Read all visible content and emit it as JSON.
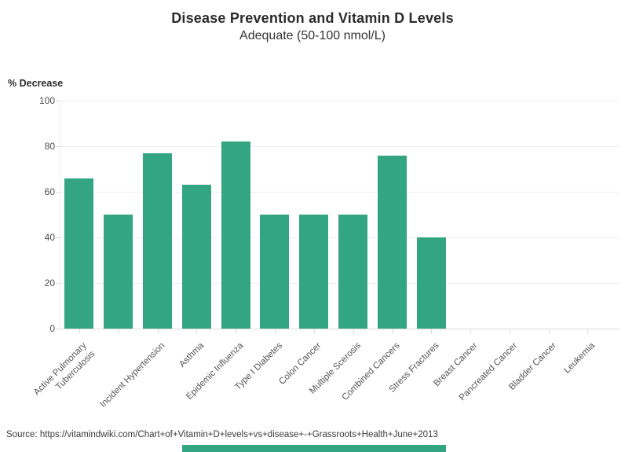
{
  "header": {
    "title": "Disease Prevention and Vitamin D Levels",
    "subtitle": "Adequate (50-100 nmol/L)"
  },
  "chart_data": {
    "type": "bar",
    "title": "Disease Prevention and Vitamin D Levels",
    "subtitle": "Adequate (50-100 nmol/L)",
    "xlabel": "",
    "ylabel": "% Decrease",
    "ylim": [
      0,
      100
    ],
    "yticks": [
      0,
      20,
      40,
      60,
      80,
      100
    ],
    "grid": true,
    "legend": "none",
    "bar_color": "#34a581",
    "categories": [
      "Active Pulmonary\nTuberculosis",
      "",
      "Incident Hypertension",
      "Asthma",
      "Epidemic Influenza",
      "Type I Diabetes",
      "Colon Cancer",
      "Multiple Scerosis",
      "Combined Cancers",
      "Stress Fractures",
      "Breast Cancer",
      "Pancreated Cancer",
      "Bladder Cancer",
      "Leukemia"
    ],
    "values": [
      66,
      50,
      77,
      63,
      82,
      50,
      50,
      50,
      76,
      40,
      0,
      0,
      0,
      0
    ]
  },
  "footer": {
    "source": "Source: https://vitamindwiki.com/Chart+of+Vitamin+D+levels+vs+disease+-+Grassroots+Health+June+2013",
    "accent_color": "#34a581"
  }
}
